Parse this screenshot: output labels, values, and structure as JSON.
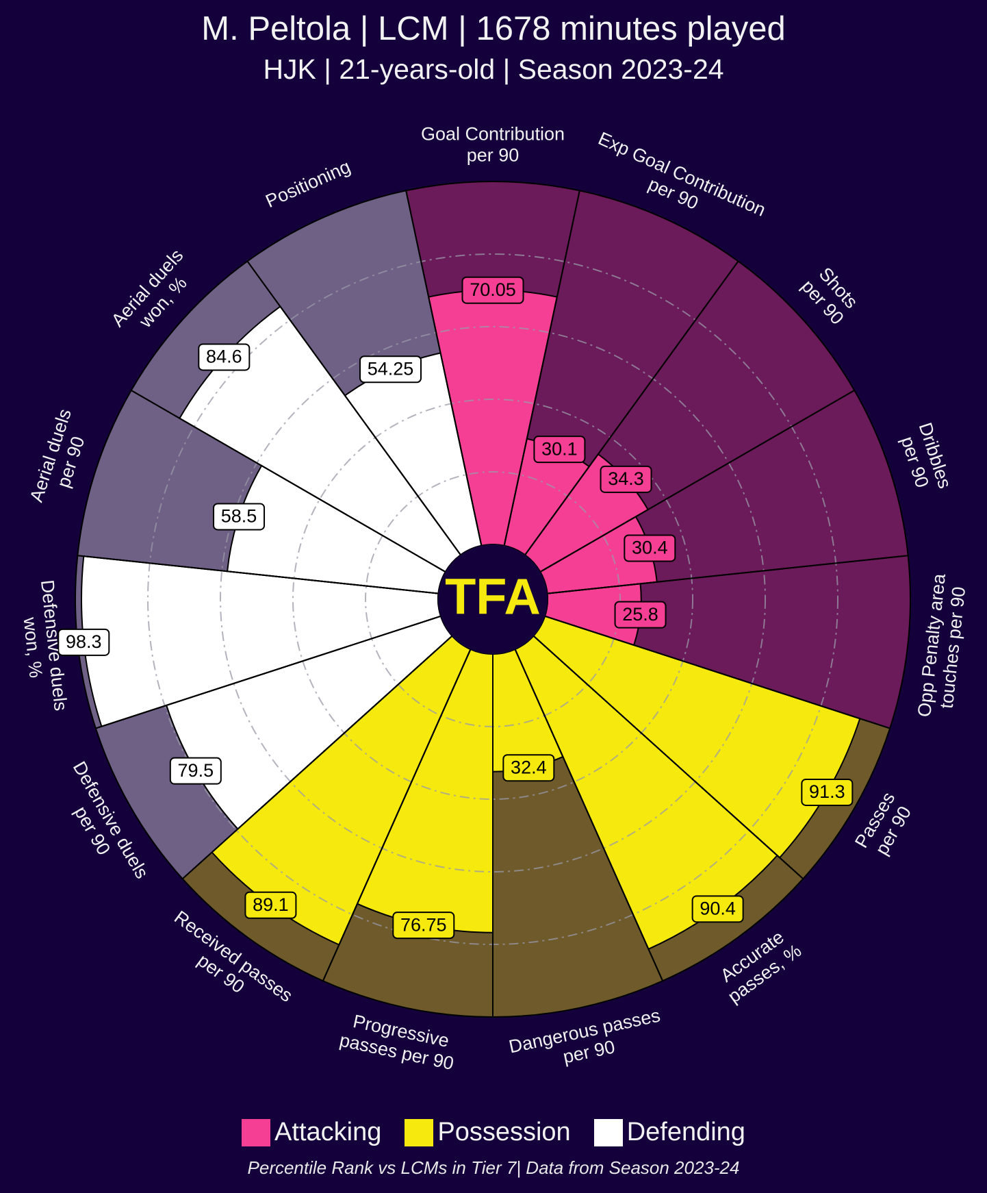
{
  "header": {
    "title": "M. Peltola | LCM | 1678 minutes played",
    "subtitle": "HJK | 21-years-old | Season 2023-24"
  },
  "logo": {
    "text": "TFA",
    "color": "#f5e90d"
  },
  "legend": [
    {
      "label": "Attacking",
      "color": "#f53f94"
    },
    {
      "label": "Possession",
      "color": "#f5e90d"
    },
    {
      "label": "Defending",
      "color": "#ffffff"
    }
  ],
  "footnote": "Percentile Rank vs LCMs in Tier 7| Data from Season 2023-24",
  "colors": {
    "background": "#14003a",
    "attacking_fill": "#f53f94",
    "attacking_bg": "#6b1a5a",
    "possession_fill": "#f5e90d",
    "possession_bg": "#6e5a2a",
    "defending_fill": "#ffffff",
    "defending_bg": "#6f6085",
    "slice_edge": "#000000",
    "grid": "#9a9aa8"
  },
  "chart_data": {
    "type": "polar-bar",
    "title": "M. Peltola | LCM | 1678 minutes played",
    "value_range": [
      0,
      100
    ],
    "gridlines": [
      20,
      40,
      60,
      80
    ],
    "slices": [
      {
        "label": "Goal Contribution\nper 90",
        "value": 70.05,
        "value_text": "70.05",
        "category": "attacking"
      },
      {
        "label": "Exp Goal Contribution\nper 90",
        "value": 30.1,
        "value_text": "30.1",
        "category": "attacking"
      },
      {
        "label": "Shots\nper 90",
        "value": 34.3,
        "value_text": "34.3",
        "category": "attacking"
      },
      {
        "label": "Dribbles\nper 90",
        "value": 30.4,
        "value_text": "30.4",
        "category": "attacking"
      },
      {
        "label": "Opp Penalty area\ntouches per 90",
        "value": 25.8,
        "value_text": "25.8",
        "category": "attacking"
      },
      {
        "label": "Passes\nper 90",
        "value": 91.3,
        "value_text": "91.3",
        "category": "possession"
      },
      {
        "label": "Accurate\npasses, %",
        "value": 90.4,
        "value_text": "90.4",
        "category": "possession"
      },
      {
        "label": "Dangerous passes\nper 90",
        "value": 32.4,
        "value_text": "32.4",
        "category": "possession"
      },
      {
        "label": "Progressive\npasses per 90",
        "value": 76.75,
        "value_text": "76.75",
        "category": "possession"
      },
      {
        "label": "Received passes\nper 90",
        "value": 89.1,
        "value_text": "89.1",
        "category": "possession"
      },
      {
        "label": "Defensive duels\nper 90",
        "value": 79.5,
        "value_text": "79.5",
        "category": "defending"
      },
      {
        "label": "Defensive duels\nwon, %",
        "value": 98.3,
        "value_text": "98.3",
        "category": "defending"
      },
      {
        "label": "Aerial duels\nper 90",
        "value": 58.5,
        "value_text": "58.5",
        "category": "defending"
      },
      {
        "label": "Aerial duels\nwon, %",
        "value": 84.6,
        "value_text": "84.6",
        "category": "defending"
      },
      {
        "label": "Positioning",
        "value": 54.25,
        "value_text": "54.25",
        "category": "defending"
      }
    ]
  }
}
